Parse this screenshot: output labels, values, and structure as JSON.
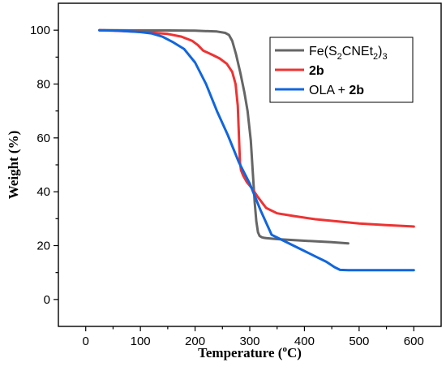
{
  "chart_data": {
    "type": "line",
    "title": "",
    "xlabel": {
      "main": "Temperature (",
      "sup": "o",
      "tail": "C)"
    },
    "ylabel": "Weight (%)",
    "xlim": [
      -50,
      650
    ],
    "ylim": [
      -10,
      110
    ],
    "xticks": [
      0,
      100,
      200,
      300,
      400,
      500,
      600
    ],
    "yticks": [
      0,
      20,
      40,
      60,
      80,
      100
    ],
    "grid": false,
    "legend_position": "top-right",
    "series": [
      {
        "name": "Fe(S2CNEt2)3",
        "legend_parts": [
          {
            "t": "Fe(S",
            "s": "n"
          },
          {
            "t": "2",
            "s": "sub"
          },
          {
            "t": "CNEt",
            "s": "n"
          },
          {
            "t": "2",
            "s": "sub"
          },
          {
            "t": ")",
            "s": "n"
          },
          {
            "t": "3",
            "s": "sub"
          }
        ],
        "color": "#666666",
        "x": [
          25,
          50,
          100,
          150,
          200,
          240,
          255,
          262,
          268,
          275,
          283,
          290,
          296,
          302,
          306,
          309,
          312,
          315,
          318,
          322,
          326,
          330,
          350,
          400,
          450,
          480
        ],
        "y": [
          100,
          100,
          99.9,
          99.9,
          99.8,
          99.5,
          99.0,
          98.2,
          96,
          91,
          84,
          77,
          70,
          59,
          46,
          36,
          29,
          25,
          23.6,
          23.1,
          22.9,
          22.8,
          22.4,
          21.8,
          21.3,
          20.8
        ]
      },
      {
        "name": "2b",
        "legend_parts": [
          {
            "t": "2b",
            "s": "b"
          }
        ],
        "color": "#ee3333",
        "x": [
          25,
          50,
          100,
          125,
          150,
          175,
          195,
          205,
          215,
          230,
          245,
          258,
          268,
          274,
          278,
          280,
          282,
          284,
          288,
          295,
          305,
          315,
          330,
          350,
          380,
          420,
          460,
          500,
          550,
          600
        ],
        "y": [
          100,
          99.8,
          99.4,
          99,
          98.6,
          97.6,
          96,
          94.5,
          92.4,
          91,
          89.5,
          87.5,
          84.5,
          80,
          72,
          62,
          51,
          48,
          46,
          43.5,
          41,
          38,
          34,
          32,
          31,
          29.8,
          29,
          28.2,
          27.6,
          27.1
        ]
      },
      {
        "name": "OLA + 2b",
        "legend_parts": [
          {
            "t": "OLA + ",
            "s": "n"
          },
          {
            "t": "2b",
            "s": "b"
          }
        ],
        "color": "#1166dd",
        "x": [
          25,
          60,
          100,
          120,
          140,
          160,
          180,
          200,
          220,
          240,
          260,
          280,
          300,
          320,
          340,
          360,
          380,
          400,
          420,
          440,
          455,
          465,
          480,
          500,
          550,
          600
        ],
        "y": [
          100,
          99.8,
          99.3,
          98.8,
          97.6,
          95.5,
          93,
          88,
          80,
          70,
          61,
          51,
          43,
          33,
          24,
          22,
          20,
          18,
          16,
          14,
          12,
          11,
          10.9,
          10.9,
          10.9,
          10.9
        ]
      }
    ]
  }
}
